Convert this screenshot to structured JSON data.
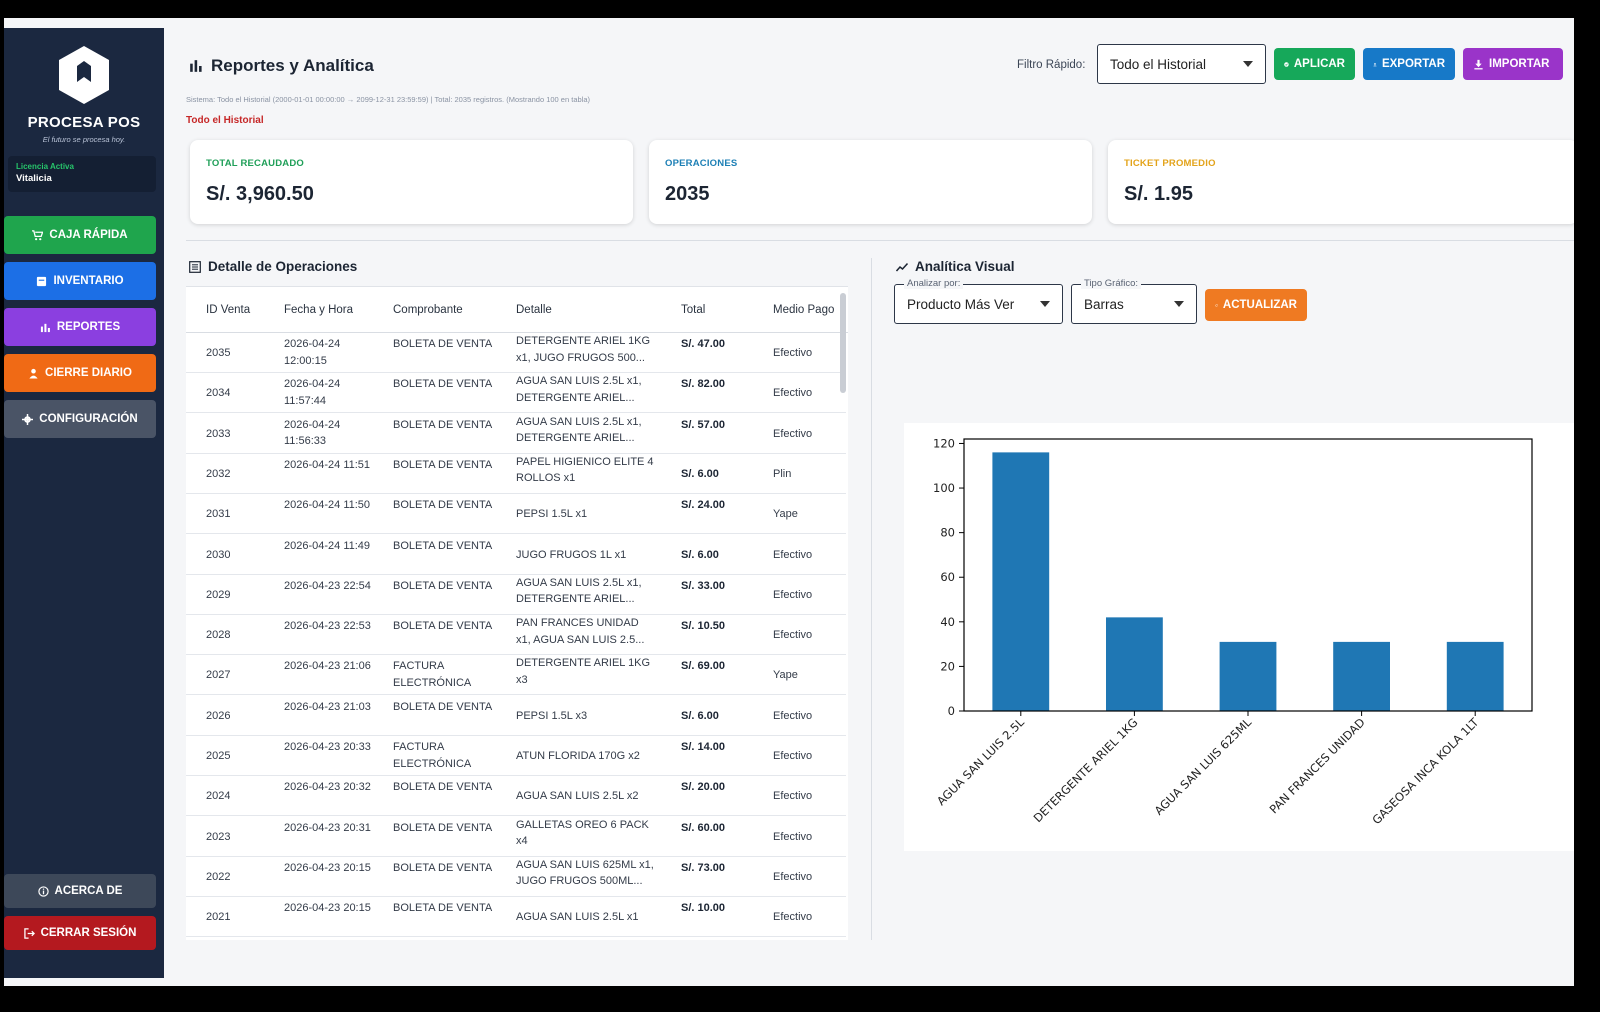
{
  "sidebar": {
    "brand": "PROCESA POS",
    "tagline": "El futuro se procesa hoy.",
    "license_label": "Licencia Activa",
    "license_value": "Vitalicia",
    "nav": {
      "caja": "CAJA RÁPIDA",
      "inventario": "INVENTARIO",
      "reportes": "REPORTES",
      "cierre": "CIERRE DIARIO",
      "config": "CONFIGURACIÓN",
      "acerca": "ACERCA DE",
      "logout": "CERRAR SESIÓN"
    }
  },
  "header": {
    "title": "Reportes y Analítica",
    "system_info": "Sistema: Todo el Historial (2000-01-01 00:00:00 → 2099-12-31 23:59:59) | Total: 2035 registros. (Mostrando 100 en tabla)",
    "history_label": "Todo el Historial",
    "filter_label": "Filtro Rápido:",
    "filter_value": "Todo el Historial",
    "btn_aplicar": "APLICAR",
    "btn_exportar": "EXPORTAR",
    "btn_importar": "IMPORTAR"
  },
  "kpis": {
    "total_label": "TOTAL RECAUDADO",
    "total_value": "S/. 3,960.50",
    "ops_label": "OPERACIONES",
    "ops_value": "2035",
    "ticket_label": "TICKET PROMEDIO",
    "ticket_value": "S/. 1.95"
  },
  "detalle": {
    "title": "Detalle de Operaciones",
    "columns": [
      "ID Venta",
      "Fecha y Hora",
      "Comprobante",
      "Detalle",
      "Total",
      "Medio Pago"
    ],
    "rows": [
      {
        "id": "2035",
        "fecha": "2026-04-24 12:00:15",
        "comp": "BOLETA DE VENTA",
        "det": "DETERGENTE ARIEL 1KG x1, JUGO FRUGOS 500...",
        "total": "S/. 47.00",
        "medio": "Efectivo"
      },
      {
        "id": "2034",
        "fecha": "2026-04-24 11:57:44",
        "comp": "BOLETA DE VENTA",
        "det": "AGUA SAN LUIS 2.5L x1, DETERGENTE ARIEL...",
        "total": "S/. 82.00",
        "medio": "Efectivo"
      },
      {
        "id": "2033",
        "fecha": "2026-04-24 11:56:33",
        "comp": "BOLETA DE VENTA",
        "det": "AGUA SAN LUIS 2.5L x1, DETERGENTE ARIEL...",
        "total": "S/. 57.00",
        "medio": "Efectivo"
      },
      {
        "id": "2032",
        "fecha": "2026-04-24 11:51",
        "comp": "BOLETA DE VENTA",
        "det": "PAPEL HIGIENICO ELITE 4 ROLLOS x1",
        "total": "S/. 6.00",
        "medio": "Plin"
      },
      {
        "id": "2031",
        "fecha": "2026-04-24 11:50",
        "comp": "BOLETA DE VENTA",
        "det": "PEPSI 1.5L x1",
        "total": "S/. 24.00",
        "medio": "Yape"
      },
      {
        "id": "2030",
        "fecha": "2026-04-24 11:49",
        "comp": "BOLETA DE VENTA",
        "det": "JUGO FRUGOS 1L x1",
        "total": "S/. 6.00",
        "medio": "Efectivo"
      },
      {
        "id": "2029",
        "fecha": "2026-04-23 22:54",
        "comp": "BOLETA DE VENTA",
        "det": "AGUA SAN LUIS 2.5L x1, DETERGENTE ARIEL...",
        "total": "S/. 33.00",
        "medio": "Efectivo"
      },
      {
        "id": "2028",
        "fecha": "2026-04-23 22:53",
        "comp": "BOLETA DE VENTA",
        "det": "PAN FRANCES UNIDAD x1, AGUA SAN LUIS 2.5...",
        "total": "S/. 10.50",
        "medio": "Efectivo"
      },
      {
        "id": "2027",
        "fecha": "2026-04-23 21:06",
        "comp": "FACTURA ELECTRÓNICA",
        "det": "DETERGENTE ARIEL 1KG x3",
        "total": "S/. 69.00",
        "medio": "Yape"
      },
      {
        "id": "2026",
        "fecha": "2026-04-23 21:03",
        "comp": "BOLETA DE VENTA",
        "det": "PEPSI 1.5L x3",
        "total": "S/. 6.00",
        "medio": "Efectivo"
      },
      {
        "id": "2025",
        "fecha": "2026-04-23 20:33",
        "comp": "FACTURA ELECTRÓNICA",
        "det": "ATUN FLORIDA 170G x2",
        "total": "S/. 14.00",
        "medio": "Efectivo"
      },
      {
        "id": "2024",
        "fecha": "2026-04-23 20:32",
        "comp": "BOLETA DE VENTA",
        "det": "AGUA SAN LUIS 2.5L x2",
        "total": "S/. 20.00",
        "medio": "Efectivo"
      },
      {
        "id": "2023",
        "fecha": "2026-04-23 20:31",
        "comp": "BOLETA DE VENTA",
        "det": "GALLETAS OREO 6 PACK x4",
        "total": "S/. 60.00",
        "medio": "Efectivo"
      },
      {
        "id": "2022",
        "fecha": "2026-04-23 20:15",
        "comp": "BOLETA DE VENTA",
        "det": "AGUA SAN LUIS 625ML x1, JUGO FRUGOS 500ML...",
        "total": "S/. 73.00",
        "medio": "Efectivo"
      },
      {
        "id": "2021",
        "fecha": "2026-04-23 20:15",
        "comp": "BOLETA DE VENTA",
        "det": "AGUA SAN LUIS 2.5L x1",
        "total": "S/. 10.00",
        "medio": "Efectivo"
      }
    ]
  },
  "analitica": {
    "title": "Analítica Visual",
    "analizar_label": "Analizar por:",
    "analizar_value": "Producto Más Ver",
    "tipo_label": "Tipo Gráfico:",
    "tipo_value": "Barras",
    "btn_actualizar": "ACTUALIZAR"
  },
  "chart_data": {
    "type": "bar",
    "categories": [
      "AGUA SAN LUIS 2.5L",
      "DETERGENTE ARIEL 1KG",
      "AGUA SAN LUIS 625ML",
      "PAN FRANCES UNIDAD",
      "GASEOSA INCA KOLA 1LT"
    ],
    "values": [
      116,
      42,
      31,
      31,
      31
    ],
    "ylim": [
      0,
      122
    ],
    "yticks": [
      0,
      20,
      40,
      60,
      80,
      100,
      120
    ],
    "bar_color": "#1f77b4",
    "title": "",
    "xlabel": "",
    "ylabel": ""
  },
  "colors": {
    "sidebar_bg": "#1b2840",
    "caja": "#1fa54d",
    "inventario": "#1c6fe6",
    "reportes": "#8b3fe0",
    "cierre": "#f06a15",
    "logout": "#b4191f"
  }
}
